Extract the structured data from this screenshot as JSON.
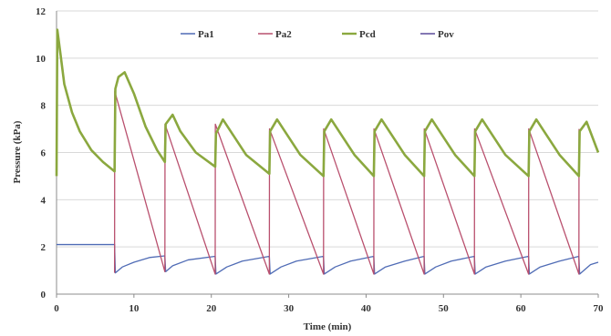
{
  "chart_data": {
    "type": "line",
    "title": "",
    "xlabel": "Time (min)",
    "ylabel": "Pressure (kPa)",
    "xlim": [
      0,
      70
    ],
    "ylim": [
      0,
      12
    ],
    "x_ticks": [
      "0",
      "10",
      "20",
      "30",
      "40",
      "50",
      "60",
      "70"
    ],
    "y_ticks": [
      "0",
      "2",
      "4",
      "6",
      "8",
      "10",
      "12"
    ],
    "grid": "horizontal",
    "legend_position": "top",
    "series": [
      {
        "name": "Pa1",
        "color": "#4f6bb5",
        "x": [
          0,
          7.5,
          7.6,
          8.5,
          10,
          12,
          14,
          14.1,
          15,
          17,
          20.5,
          20.6,
          22,
          24,
          27.5,
          27.6,
          29,
          31,
          34.5,
          34.6,
          36,
          38,
          41,
          41.1,
          42.5,
          45,
          47.5,
          47.6,
          49,
          51,
          54,
          54.1,
          55.5,
          58,
          61,
          61.1,
          62.5,
          65,
          67.5,
          67.6,
          69,
          70
        ],
        "y": [
          2.1,
          2.1,
          0.9,
          1.15,
          1.35,
          1.55,
          1.62,
          0.95,
          1.2,
          1.45,
          1.6,
          0.85,
          1.15,
          1.4,
          1.6,
          0.85,
          1.15,
          1.4,
          1.6,
          0.85,
          1.15,
          1.4,
          1.6,
          0.85,
          1.15,
          1.4,
          1.6,
          0.85,
          1.15,
          1.4,
          1.6,
          0.85,
          1.15,
          1.4,
          1.6,
          0.85,
          1.15,
          1.4,
          1.6,
          0.85,
          1.25,
          1.35
        ]
      },
      {
        "name": "Pa2",
        "color": "#b9506e",
        "x": [
          7.5,
          7.52,
          14,
          14.02,
          20.5,
          20.52,
          27.5,
          27.52,
          34.5,
          34.52,
          41,
          41.02,
          47.5,
          47.52,
          54,
          54.02,
          61,
          61.02,
          67.5,
          67.52
        ],
        "y": [
          0.9,
          8.6,
          0.95,
          7.2,
          0.85,
          7.2,
          0.85,
          7.0,
          0.85,
          7.0,
          0.85,
          7.0,
          0.85,
          7.0,
          0.85,
          7.0,
          0.85,
          7.0,
          0.85,
          7.0
        ]
      },
      {
        "name": "Pcd",
        "color": "#8ba83f",
        "x": [
          0,
          0.1,
          0.5,
          1,
          2,
          3,
          4.5,
          6,
          7.5,
          7.6,
          8,
          8.8,
          10,
          11.5,
          13,
          14,
          14.1,
          15,
          16,
          18,
          20.5,
          20.6,
          21.5,
          22.5,
          24.5,
          27.5,
          27.6,
          28.5,
          29.5,
          31.5,
          34.5,
          34.6,
          35.5,
          36.5,
          38.5,
          41,
          41.1,
          42,
          43,
          45,
          47.5,
          47.6,
          48.5,
          49.5,
          51.5,
          54,
          54.1,
          55,
          56,
          58,
          61,
          61.1,
          62,
          63,
          65,
          67.5,
          67.6,
          68.5,
          70
        ],
        "y": [
          5.0,
          11.2,
          10.2,
          8.9,
          7.7,
          6.9,
          6.1,
          5.6,
          5.2,
          8.7,
          9.2,
          9.4,
          8.5,
          7.1,
          6.1,
          5.6,
          7.2,
          7.6,
          6.9,
          6.0,
          5.4,
          6.8,
          7.4,
          6.9,
          5.9,
          5.1,
          6.9,
          7.4,
          6.9,
          5.9,
          5.0,
          6.9,
          7.4,
          6.9,
          5.9,
          5.0,
          6.9,
          7.4,
          6.9,
          5.9,
          5.0,
          6.9,
          7.4,
          6.9,
          5.9,
          5.0,
          6.9,
          7.4,
          6.9,
          5.9,
          5.0,
          6.9,
          7.4,
          6.9,
          5.9,
          5.0,
          6.9,
          7.3,
          6.0
        ]
      },
      {
        "name": "Pov",
        "color": "#5a4b9a",
        "x": [],
        "y": []
      }
    ]
  }
}
